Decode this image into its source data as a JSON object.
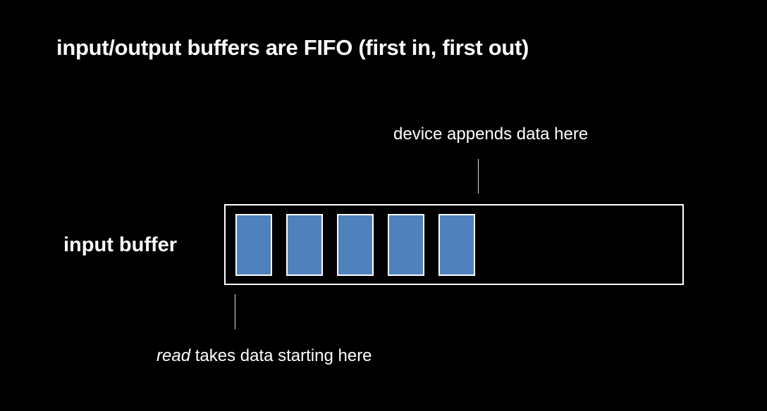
{
  "title": "input/output buffers are FIFO (first in, first out)",
  "buffer": {
    "label": "input buffer",
    "filled_slots": 5
  },
  "annotations": {
    "append": "device appends data here",
    "read_keyword": "read",
    "read_rest": " takes data starting here"
  },
  "colors": {
    "background": "#000000",
    "slot_fill": "#4f81bd",
    "outline": "#ffffff"
  }
}
